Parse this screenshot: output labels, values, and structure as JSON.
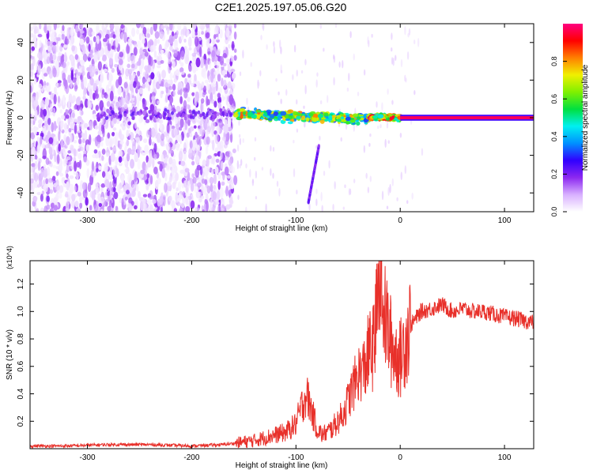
{
  "title": "C2E1.2025.197.05.06.G20",
  "chart_data": [
    {
      "type": "heatmap",
      "xlabel": "Height of straight line (km)",
      "ylabel": "Frequency (Hz)",
      "xlim": [
        -355,
        128
      ],
      "ylim": [
        -50,
        50
      ],
      "xticks": [
        -300,
        -200,
        -100,
        0,
        100
      ],
      "yticks": [
        -40,
        -20,
        0,
        20,
        40
      ],
      "grid": false,
      "colorbar": {
        "label": "Normalized spectral amplitude",
        "range": [
          0,
          1
        ],
        "ticks": [
          "0.0",
          "0.2",
          "0.4",
          "0.6",
          "0.8"
        ],
        "colors": [
          "#ffffff",
          "#d8b0ff",
          "#8c28f0",
          "#3000ff",
          "#0090ff",
          "#00f0f0",
          "#00e040",
          "#80f000",
          "#f0f000",
          "#ff8000",
          "#ff0000",
          "#ff0080"
        ]
      },
      "regions": [
        {
          "x_range": [
            -355,
            -158
          ],
          "freq_range": [
            -50,
            50
          ],
          "amplitude": [
            0.02,
            0.2
          ],
          "description": "scattered"
        },
        {
          "x_range": [
            -158,
            -30
          ],
          "freq_range": [
            -3,
            7
          ],
          "amplitude": [
            0.3,
            0.85
          ]
        },
        {
          "x_range": [
            -30,
            0
          ],
          "freq_range": [
            -2,
            3
          ],
          "amplitude": [
            0.4,
            0.95
          ]
        },
        {
          "x_range": [
            0,
            128
          ],
          "freq_range": [
            -1,
            1
          ],
          "amplitude": [
            0.95,
            1.0
          ]
        }
      ],
      "streak": {
        "x": [
          -88,
          -78
        ],
        "freq": [
          -45,
          -15
        ]
      }
    },
    {
      "type": "line",
      "xlabel": "Height of straight line (km)",
      "ylabel": "SNR (10 * v/v)",
      "y_multiplier": "(x10^4)",
      "xlim": [
        -355,
        128
      ],
      "ylim": [
        0,
        1.37
      ],
      "xticks": [
        -300,
        -200,
        -100,
        0,
        100
      ],
      "yticks": [
        0.2,
        0.4,
        0.6,
        0.8,
        1.0,
        1.2
      ],
      "color": "#e8302a",
      "series": [
        {
          "x": [
            -355,
            -320,
            -280,
            -240,
            -200,
            -170,
            -158,
            -150,
            -140,
            -130,
            -120,
            -110,
            -100,
            -95,
            -90,
            -85,
            -80,
            -75,
            -70,
            -65,
            -60,
            -55,
            -50,
            -45,
            -40,
            -35,
            -30,
            -25,
            -20,
            -18,
            -15,
            -10,
            -5,
            0,
            5,
            10,
            15,
            20,
            30,
            40,
            50,
            60,
            70,
            80,
            90,
            100,
            110,
            120,
            128
          ],
          "y": [
            0.02,
            0.02,
            0.03,
            0.03,
            0.02,
            0.03,
            0.04,
            0.05,
            0.06,
            0.08,
            0.1,
            0.12,
            0.18,
            0.3,
            0.4,
            0.28,
            0.15,
            0.1,
            0.12,
            0.15,
            0.2,
            0.25,
            0.35,
            0.45,
            0.55,
            0.58,
            0.7,
            0.75,
            1.2,
            1.37,
            1.0,
            0.8,
            0.7,
            0.65,
            0.8,
            0.9,
            0.95,
            1.0,
            1.02,
            1.05,
            1.0,
            1.02,
            1.0,
            1.0,
            0.98,
            0.96,
            0.95,
            0.93,
            0.92
          ]
        }
      ]
    }
  ]
}
